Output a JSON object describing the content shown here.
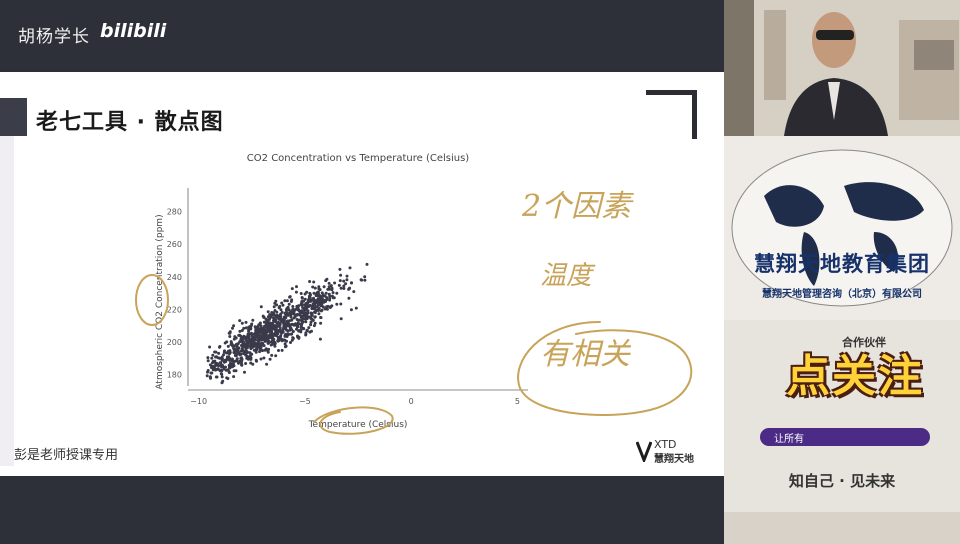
{
  "header": {
    "channel_name": "胡杨学长",
    "platform_logo": "bilibili"
  },
  "slide": {
    "title": "老七工具 · 散点图",
    "footer_text": "彭是老师授课专用",
    "logo_text": "XTD",
    "logo_cn": "慧翔天地",
    "handwritten_notes": [
      "2个因素",
      "温度",
      "有相关"
    ]
  },
  "chart_data": {
    "type": "scatter",
    "title": "CO2 Concentration vs Temperature (Celsius)",
    "xlabel": "Temperature (Celsius)",
    "ylabel": "Atmospheric CO2 Concentration (ppm)",
    "xlim": [
      -10.5,
      5.5
    ],
    "ylim": [
      173,
      292
    ],
    "xticks": [
      -10,
      -5,
      0,
      5
    ],
    "yticks": [
      180,
      200,
      220,
      240,
      260,
      280
    ],
    "grid": false,
    "trend": {
      "slope": 7.8,
      "intercept": 258,
      "x_range": [
        -9.6,
        3.8
      ]
    },
    "point_count": 1000,
    "point_color": "#3a3a4a"
  },
  "sidebar": {
    "brand_name": "慧翔天地教育集团",
    "brand_subtitle": "慧翔天地管理咨询（北京）有限公司",
    "follow_text": "点关注",
    "coop_text": "合作伙伴",
    "bar_text": "让所有",
    "slogan": "知自己 · 见未来"
  }
}
